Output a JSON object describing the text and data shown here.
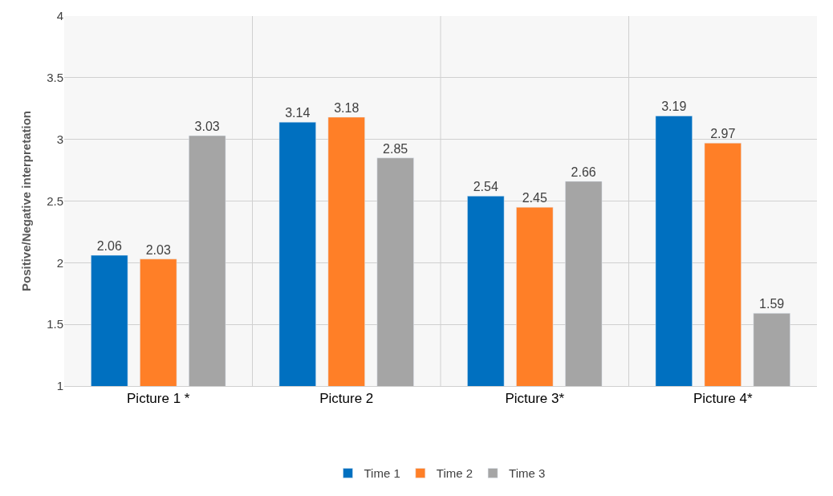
{
  "chart_data": {
    "type": "bar",
    "ylabel": "Positive/Negative interpretation",
    "categories": [
      "Picture 1 *",
      "Picture 2",
      "Picture 3*",
      "Picture 4*"
    ],
    "series": [
      {
        "name": "Time 1",
        "color": "#0070c0",
        "values": [
          2.06,
          3.14,
          2.54,
          3.19
        ]
      },
      {
        "name": "Time 2",
        "color": "#ff7f27",
        "values": [
          2.03,
          3.18,
          2.45,
          2.97
        ]
      },
      {
        "name": "Time 3",
        "color": "#a5a5a5",
        "values": [
          3.03,
          2.85,
          2.66,
          1.59
        ]
      }
    ],
    "ylim": [
      1,
      4
    ],
    "yticks": [
      1,
      1.5,
      2,
      2.5,
      3,
      3.5,
      4
    ],
    "grid": true,
    "legend": "bottom",
    "data_labels": true
  }
}
